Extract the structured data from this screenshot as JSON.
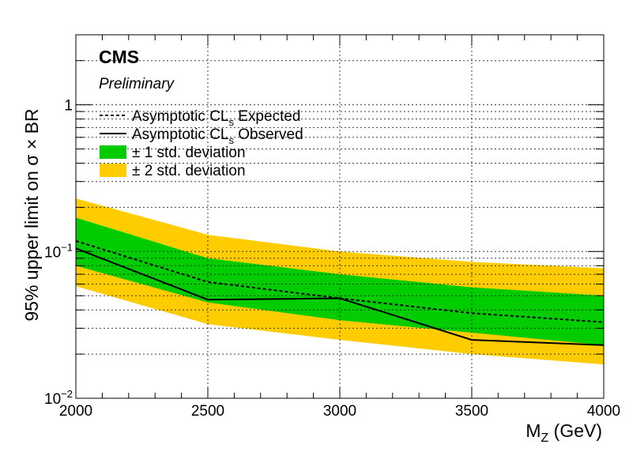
{
  "chart_data": {
    "type": "area",
    "experiment_label": "CMS",
    "status_label": "Preliminary",
    "xlabel_main": "M",
    "xlabel_sub": "Z",
    "xlabel_unit": " (GeV)",
    "ylabel": "95% upper limit on  σ × BR",
    "y_scale": "log",
    "xlim": [
      2000,
      4000
    ],
    "ylim": [
      0.01,
      3
    ],
    "grid": true,
    "legend_position": "top-left",
    "x_ticks": [
      {
        "value": 2000,
        "label": "2000"
      },
      {
        "value": 2500,
        "label": "2500"
      },
      {
        "value": 3000,
        "label": "3000"
      },
      {
        "value": 3500,
        "label": "3500"
      },
      {
        "value": 4000,
        "label": "4000"
      }
    ],
    "y_ticks": [
      {
        "value": 0.01,
        "base": "10",
        "exp": "−2"
      },
      {
        "value": 0.1,
        "base": "10",
        "exp": "−1"
      },
      {
        "value": 1,
        "base": "1",
        "exp": ""
      }
    ],
    "x": [
      2000,
      2500,
      3000,
      3500,
      4000
    ],
    "series": [
      {
        "name": "± 2 std. deviation",
        "kind": "band",
        "color": "#ffcc00",
        "lower": [
          0.058,
          0.032,
          0.025,
          0.02,
          0.017
        ],
        "upper": [
          0.23,
          0.13,
          0.1,
          0.085,
          0.077
        ]
      },
      {
        "name": "± 1 std. deviation",
        "kind": "band",
        "color": "#00cc00",
        "lower": [
          0.08,
          0.045,
          0.034,
          0.028,
          0.023
        ],
        "upper": [
          0.17,
          0.09,
          0.07,
          0.057,
          0.05
        ]
      },
      {
        "name": "Expected",
        "kind": "line",
        "style": "dashed",
        "color": "#000000",
        "values": [
          0.118,
          0.062,
          0.048,
          0.038,
          0.033
        ]
      },
      {
        "name": "Observed",
        "kind": "line",
        "style": "solid",
        "color": "#000000",
        "values": [
          0.105,
          0.047,
          0.048,
          0.025,
          0.023
        ]
      }
    ],
    "legend": [
      {
        "symbol": "dashed",
        "main": "Asymptotic CL",
        "sub": "s",
        "tail": " Expected"
      },
      {
        "symbol": "solid",
        "main": "Asymptotic CL",
        "sub": "s",
        "tail": " Observed"
      },
      {
        "symbol": "box",
        "color": "#00cc00",
        "main": "± 1 std. deviation",
        "sub": "",
        "tail": ""
      },
      {
        "symbol": "box",
        "color": "#ffcc00",
        "main": "± 2 std. deviation",
        "sub": "",
        "tail": ""
      }
    ]
  }
}
